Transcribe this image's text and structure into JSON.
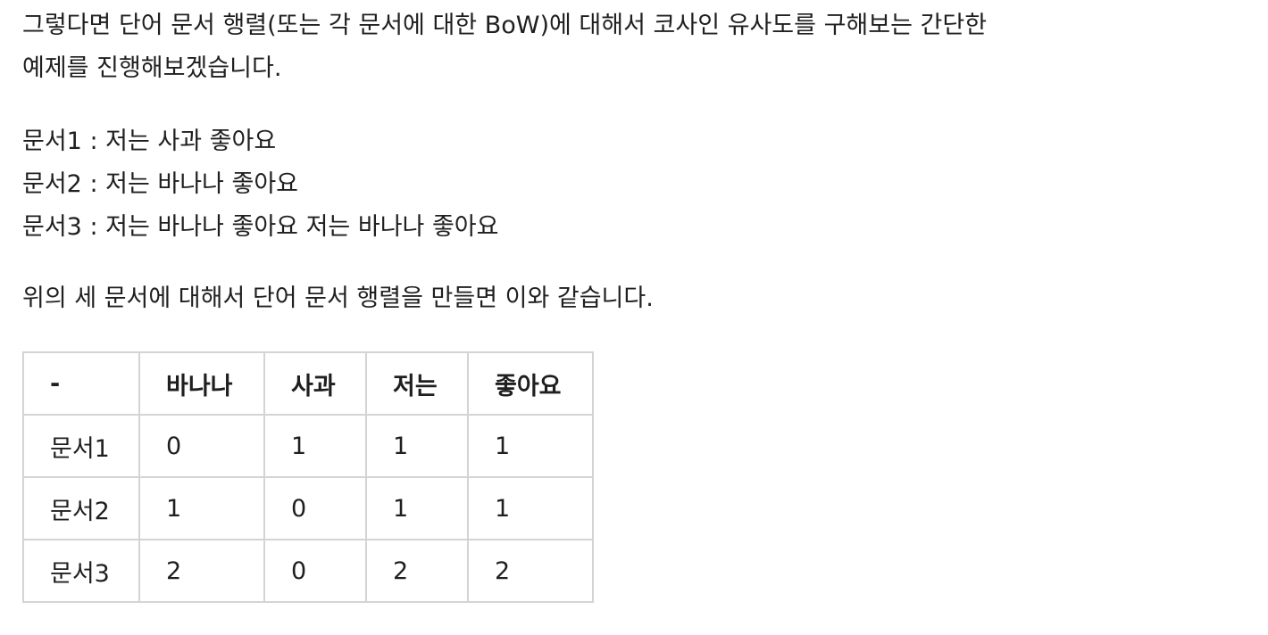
{
  "intro": {
    "line1": "그렇다면 단어 문서 행렬(또는 각 문서에 대한 BoW)에 대해서 코사인 유사도를 구해보는 간단한",
    "line2": "예제를 진행해보겠습니다."
  },
  "documents": [
    "문서1 : 저는 사과 좋아요",
    "문서2 : 저는 바나나 좋아요",
    "문서3 : 저는 바나나 좋아요 저는 바나나 좋아요"
  ],
  "lead": "위의 세 문서에 대해서 단어 문서 행렬을 만들면 이와 같습니다.",
  "table": {
    "headers": [
      "-",
      "바나나",
      "사과",
      "저는",
      "좋아요"
    ],
    "rows": [
      [
        "문서1",
        "0",
        "1",
        "1",
        "1"
      ],
      [
        "문서2",
        "1",
        "0",
        "1",
        "1"
      ],
      [
        "문서3",
        "2",
        "0",
        "2",
        "2"
      ]
    ]
  }
}
